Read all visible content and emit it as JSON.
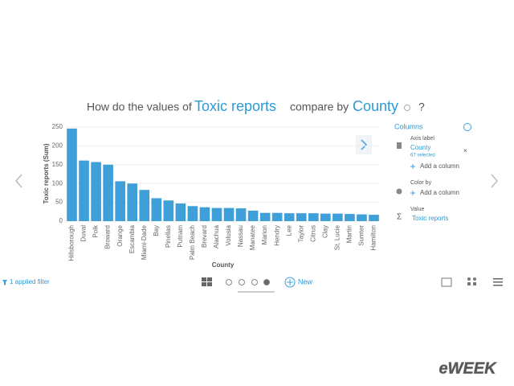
{
  "header": {
    "prefix": "How do the values of",
    "measure": "Toxic reports",
    "middle": "compare by",
    "dimension": "County",
    "suffix": "?"
  },
  "chart_data": {
    "type": "bar",
    "x_label": "County",
    "y_label": "Toxic reports (Sum)",
    "color": "#3fa0d9",
    "grid": true,
    "categories": [
      "Hillsborough",
      "Duval",
      "Polk",
      "Broward",
      "Orange",
      "Escambia",
      "Miami-Dade",
      "Bay",
      "Pinellas",
      "Putnam",
      "Palm Beach",
      "Brevard",
      "Alachua",
      "Volusia",
      "Nassau",
      "Manatee",
      "Marion",
      "Hendry",
      "Lee",
      "Taylor",
      "Citrus",
      "Clay",
      "St. Lucie",
      "Martin",
      "Sumter",
      "Hamilton"
    ],
    "values": [
      246,
      161,
      157,
      150,
      106,
      100,
      83,
      61,
      55,
      47,
      40,
      37,
      35,
      35,
      34,
      28,
      22,
      22,
      21,
      21,
      21,
      20,
      20,
      19,
      18,
      17
    ],
    "ylim": [
      0,
      250
    ],
    "yticks": [
      0,
      50,
      100,
      150,
      200,
      250
    ]
  },
  "panel": {
    "title": "Columns",
    "axis_label": "Axis label",
    "axis_column": "County",
    "axis_selected": "67 selected",
    "add_axis": "Add a column",
    "color_by": "Color by",
    "add_color": "Add a column",
    "value_label": "Value",
    "value_symbol": "Σ",
    "value_column": "Toxic reports"
  },
  "footer": {
    "filter": "1 applied filter",
    "new": "New",
    "watermark": "eWEEK"
  }
}
